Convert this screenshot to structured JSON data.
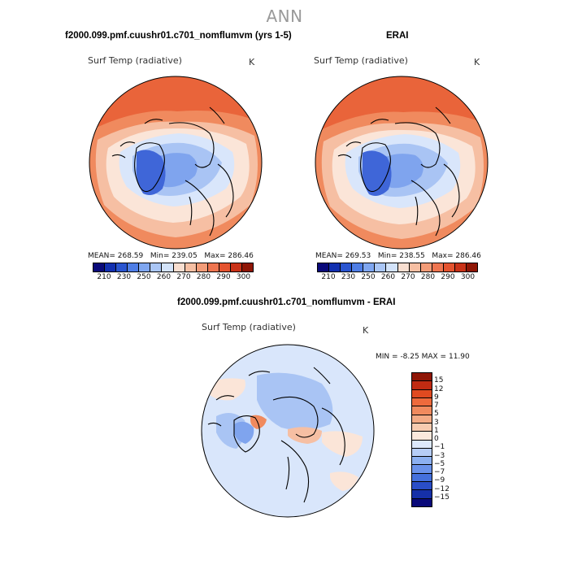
{
  "page": {
    "title": "ANN"
  },
  "panels": [
    {
      "title": "f2000.099.pmf.cuushr01.c701_nomflumvm (yrs 1-5)",
      "variable": "Surf Temp (radiative)",
      "units": "K",
      "stats": {
        "mean_label": "MEAN=",
        "mean": "268.59",
        "min_label": "Min=",
        "min": "239.05",
        "max_label": "Max=",
        "max": "286.46"
      }
    },
    {
      "title": "ERAI",
      "variable": "Surf Temp (radiative)",
      "units": "K",
      "stats": {
        "mean_label": "MEAN=",
        "mean": "269.53",
        "min_label": "Min=",
        "min": "238.55",
        "max_label": "Max=",
        "max": "286.46"
      }
    }
  ],
  "diff_panel": {
    "title": "f2000.099.pmf.cuushr01.c701_nomflumvm - ERAI",
    "variable": "Surf Temp (radiative)",
    "units": "K",
    "stats": {
      "min_label": "MIN =",
      "min": "-8.25",
      "max_label": "MAX =",
      "max": "11.90"
    }
  },
  "colorbar_abs": {
    "ticks": [
      "210",
      "230",
      "250",
      "260",
      "270",
      "280",
      "290",
      "300"
    ],
    "colors": [
      "#0a0a7a",
      "#1230b0",
      "#2a55d0",
      "#4f7ee6",
      "#7fa6f0",
      "#aac6f6",
      "#d3e3fa",
      "#f8ded0",
      "#f6bfa3",
      "#f39c78",
      "#ee7550",
      "#e4532f",
      "#c93218",
      "#8f1606"
    ]
  },
  "colorbar_diff": {
    "ticks": [
      "15",
      "12",
      "9",
      "7",
      "5",
      "3",
      "1",
      "0",
      "−1",
      "−3",
      "−5",
      "−7",
      "−9",
      "−12",
      "−15"
    ],
    "colors": [
      "#8f1606",
      "#c02b12",
      "#e04a20",
      "#ee6a3c",
      "#f08a5e",
      "#f3ab86",
      "#f7cbb0",
      "#fbe8dc",
      "#dde9fb",
      "#b6cdf6",
      "#8cb0f0",
      "#6a92ea",
      "#4470dc",
      "#2a4ec8",
      "#1630a8",
      "#0a0a7a"
    ]
  },
  "map_colors": {
    "warm_far": "#e9643a",
    "warm": "#f08a5e",
    "warm_light": "#f6bfa3",
    "neutral": "#fbe5d8",
    "cool_light": "#d9e6fb",
    "cool": "#a9c4f4",
    "cool_mid": "#7fa4ee",
    "cold": "#3f66d8",
    "diff_bg": "#d9e6fb"
  }
}
